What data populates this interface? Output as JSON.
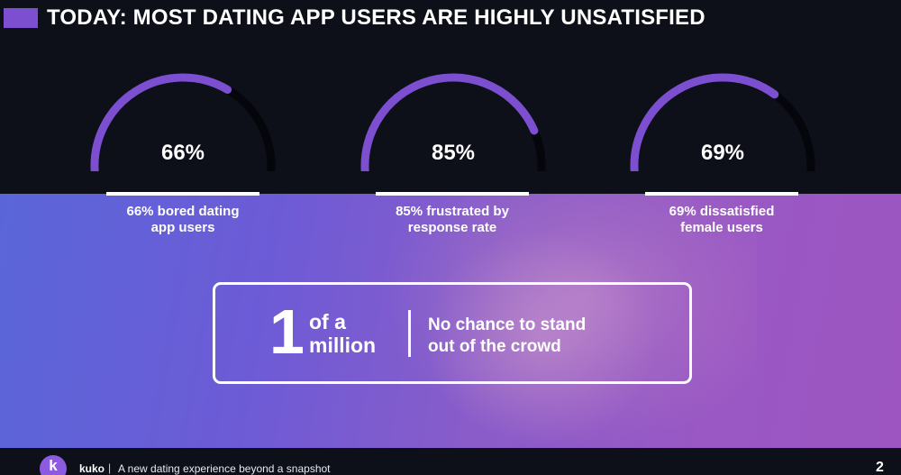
{
  "header": {
    "title": "TODAY: MOST DATING APP USERS ARE HIGHLY UNSATISFIED"
  },
  "colors": {
    "background": "#0d0f19",
    "accent": "#7b4fd0",
    "gauge_track": "#05060c",
    "gauge_fill": "#7b4fd0"
  },
  "gauges": [
    {
      "label": "66%",
      "value": 66,
      "caption_line1": "66% bored dating",
      "caption_line2": "app users"
    },
    {
      "label": "85%",
      "value": 85,
      "caption_line1": "85% frustrated by",
      "caption_line2": "response rate"
    },
    {
      "label": "69%",
      "value": 69,
      "caption_line1": "69% dissatisfied",
      "caption_line2": "female users"
    }
  ],
  "callout": {
    "big_number": "1",
    "sub_line1": "of a",
    "sub_line2": "million",
    "text_line1": "No chance to stand",
    "text_line2": "out of the crowd"
  },
  "footer": {
    "logo_letter": "k",
    "brand": "kuko",
    "separator": "|",
    "tagline": "A new dating experience beyond a snapshot",
    "page_number": "2"
  }
}
